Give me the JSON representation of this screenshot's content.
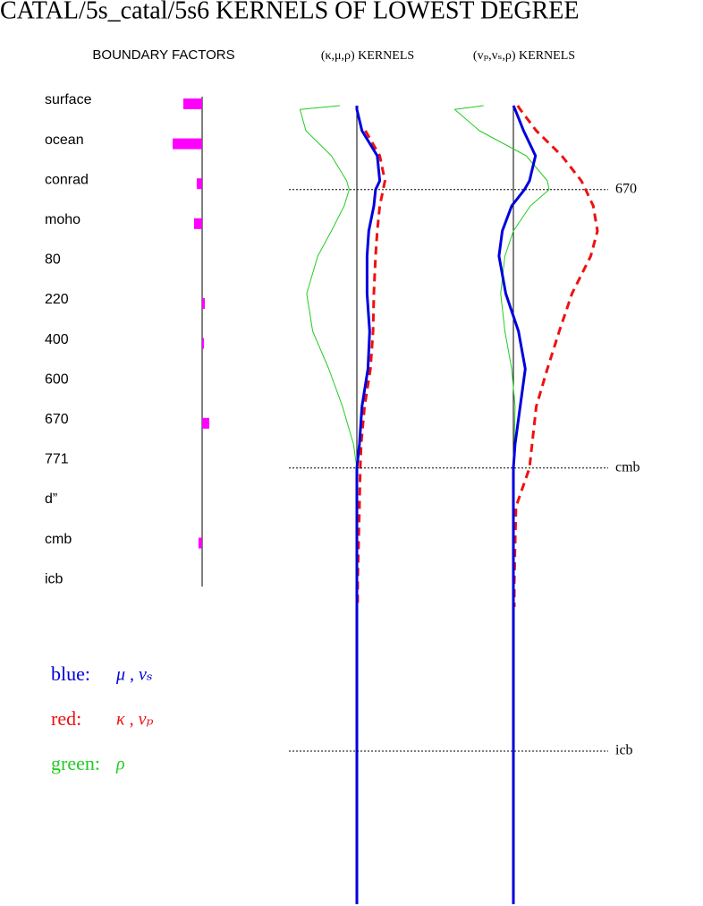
{
  "title": "CATAL/5s_catal/5s6 KERNELS OF LOWEST DEGREE",
  "legend": [
    {
      "label": "blue:",
      "symbols": "μ , vₛ",
      "color": "#0000dd"
    },
    {
      "label": "red:",
      "symbols": "κ , vₚ",
      "color": "#ee1111"
    },
    {
      "label": "green:",
      "symbols": "ρ",
      "color": "#22cc22"
    }
  ],
  "chart_data": [
    {
      "type": "bar",
      "title": "BOUNDARY FACTORS",
      "orientation": "horizontal",
      "color": "#ff00ff",
      "categories": [
        "surface",
        "ocean",
        "conrad",
        "moho",
        "80",
        "220",
        "400",
        "600",
        "670",
        "771",
        "d”",
        "cmb",
        "icb"
      ],
      "values": [
        -21,
        -33,
        -6,
        -9,
        0,
        3,
        2,
        0,
        8,
        0,
        0,
        -4,
        0
      ],
      "xlim": [
        -40,
        40
      ]
    },
    {
      "type": "line",
      "title": "(κ,μ,ρ) KERNELS",
      "x": [
        0,
        30,
        200,
        400,
        600,
        670,
        800,
        1000,
        1200,
        1500,
        1800,
        2100,
        2400,
        2700,
        2891,
        3200,
        3500,
        3800,
        4000,
        4200,
        6371
      ],
      "xlim": [
        0,
        6371
      ],
      "ylim": [
        -1,
        1
      ],
      "series": [
        {
          "name": "μ",
          "color": "#0000dd",
          "values": [
            0,
            0,
            0.06,
            0.24,
            0.27,
            0.22,
            0.2,
            0.14,
            0.12,
            0.12,
            0.15,
            0.13,
            0.06,
            0.03,
            0,
            0,
            0,
            0,
            0,
            0,
            0
          ]
        },
        {
          "name": "κ",
          "color": "#ee1111",
          "dashed": true,
          "values": [
            null,
            null,
            0.1,
            0.27,
            0.33,
            0.31,
            0.27,
            0.24,
            0.22,
            0.2,
            0.19,
            0.16,
            0.09,
            0.05,
            0.04,
            0.03,
            0.02,
            0.01,
            0.01,
            null,
            null
          ]
        },
        {
          "name": "ρ",
          "color": "#22cc22",
          "values": [
            -0.2,
            -0.67,
            -0.6,
            -0.3,
            -0.12,
            -0.09,
            -0.15,
            -0.3,
            -0.46,
            -0.59,
            -0.52,
            -0.33,
            -0.17,
            -0.04,
            0,
            0,
            0,
            0,
            0,
            0,
            0
          ]
        }
      ]
    },
    {
      "type": "line",
      "title": "(vₚ,vₛ,ρ) KERNELS",
      "x": [
        0,
        30,
        200,
        400,
        600,
        670,
        800,
        1000,
        1200,
        1500,
        1800,
        2100,
        2400,
        2700,
        2891,
        3200,
        3500,
        3800,
        4000,
        4200,
        6371
      ],
      "xlim": [
        0,
        6371
      ],
      "ylim": [
        -1,
        1
      ],
      "xticks": [
        670,
        {
          "value": 2891,
          "label": "cmb"
        },
        {
          "value": 5150,
          "label": "icb"
        }
      ],
      "series": [
        {
          "name": "vₛ",
          "color": "#0000dd",
          "values": [
            0,
            0.02,
            0.12,
            0.26,
            0.19,
            0.13,
            -0.02,
            -0.13,
            -0.17,
            -0.09,
            0.06,
            0.14,
            0.08,
            0.02,
            0,
            0,
            0,
            0,
            0,
            0,
            0
          ]
        },
        {
          "name": "vₚ",
          "color": "#ee1111",
          "dashed": true,
          "values": [
            0.05,
            0.08,
            0.27,
            0.57,
            0.8,
            0.85,
            0.94,
            0.99,
            0.91,
            0.69,
            0.54,
            0.4,
            0.27,
            0.22,
            0.19,
            0.03,
            0.02,
            0.01,
            0.01,
            null,
            null
          ]
        },
        {
          "name": "ρ",
          "color": "#22cc22",
          "values": [
            -0.35,
            -0.69,
            -0.4,
            0.15,
            0.4,
            0.42,
            0.2,
            0,
            -0.1,
            -0.15,
            -0.1,
            -0.02,
            0.02,
            0.01,
            0,
            0,
            0,
            0,
            0,
            0,
            0
          ]
        }
      ]
    }
  ]
}
